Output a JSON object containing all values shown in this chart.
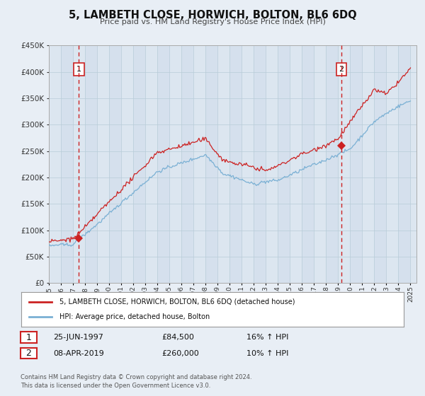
{
  "title": "5, LAMBETH CLOSE, HORWICH, BOLTON, BL6 6DQ",
  "subtitle": "Price paid vs. HM Land Registry's House Price Index (HPI)",
  "background_color": "#e8eef5",
  "plot_bg_color": "#dce6f0",
  "ylim": [
    0,
    450000
  ],
  "yticks": [
    0,
    50000,
    100000,
    150000,
    200000,
    250000,
    300000,
    350000,
    400000,
    450000
  ],
  "sale1_x": 1997.49,
  "sale1_price": 84500,
  "sale2_x": 2019.27,
  "sale2_price": 260000,
  "red_line_color": "#cc2222",
  "blue_line_color": "#7ab0d4",
  "grid_color": "#c8d8e8",
  "dashed_color": "#cc2222",
  "legend_label_red": "5, LAMBETH CLOSE, HORWICH, BOLTON, BL6 6DQ (detached house)",
  "legend_label_blue": "HPI: Average price, detached house, Bolton",
  "footer1": "Contains HM Land Registry data © Crown copyright and database right 2024.",
  "footer2": "This data is licensed under the Open Government Licence v3.0."
}
